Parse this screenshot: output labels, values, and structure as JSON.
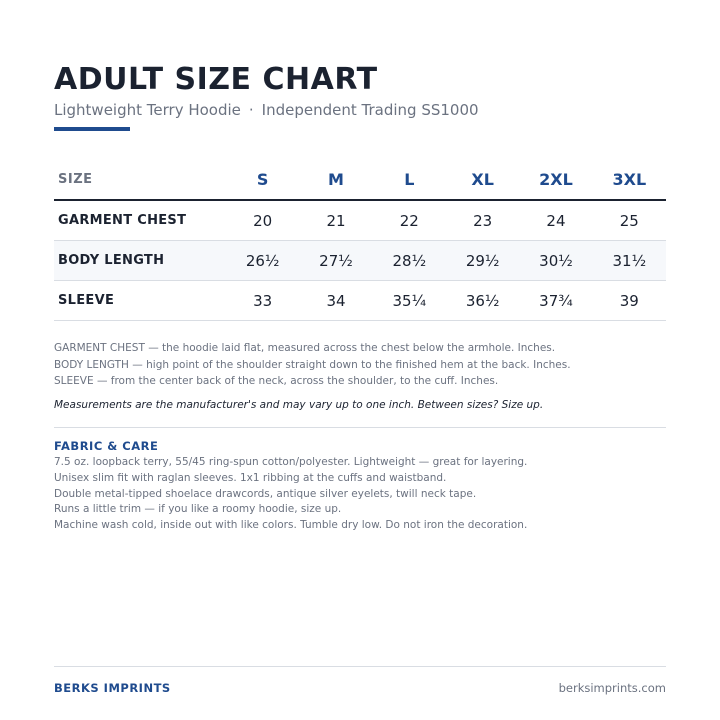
{
  "header": {
    "title": "ADULT SIZE CHART",
    "product": "Lightweight Terry Hoodie",
    "separator": "·",
    "brand_model": "Independent Trading SS1000",
    "accent_color": "#1f4b8e"
  },
  "table": {
    "label_header": "SIZE",
    "sizes": [
      "S",
      "M",
      "L",
      "XL",
      "2XL",
      "3XL"
    ],
    "rows": [
      {
        "label": "GARMENT CHEST",
        "values": [
          "20",
          "21",
          "22",
          "23",
          "24",
          "25"
        ]
      },
      {
        "label": "BODY LENGTH",
        "values": [
          "26½",
          "27½",
          "28½",
          "29½",
          "30½",
          "31½"
        ]
      },
      {
        "label": "SLEEVE",
        "values": [
          "33",
          "34",
          "35¼",
          "36½",
          "37¾",
          "39"
        ]
      }
    ]
  },
  "notes": [
    "GARMENT CHEST — the hoodie laid flat, measured across the chest below the armhole. Inches.",
    "BODY LENGTH — high point of the shoulder straight down to the finished hem at the back. Inches.",
    "SLEEVE — from the center back of the neck, across the shoulder, to the cuff. Inches."
  ],
  "disclaimer": "Measurements are the manufacturer's and may vary up to one inch. Between sizes? Size up.",
  "care": {
    "title": "FABRIC & CARE",
    "lines": [
      "7.5 oz. loopback terry, 55/45 ring-spun cotton/polyester. Lightweight — great for layering.",
      "Unisex slim fit with raglan sleeves. 1x1 ribbing at the cuffs and waistband.",
      "Double metal-tipped shoelace drawcords, antique silver eyelets, twill neck tape.",
      "Runs a little trim — if you like a roomy hoodie, size up.",
      "Machine wash cold, inside out with like colors. Tumble dry low. Do not iron the decoration."
    ]
  },
  "footer": {
    "brand": "BERKS IMPRINTS",
    "website": "berksimprints.com"
  }
}
